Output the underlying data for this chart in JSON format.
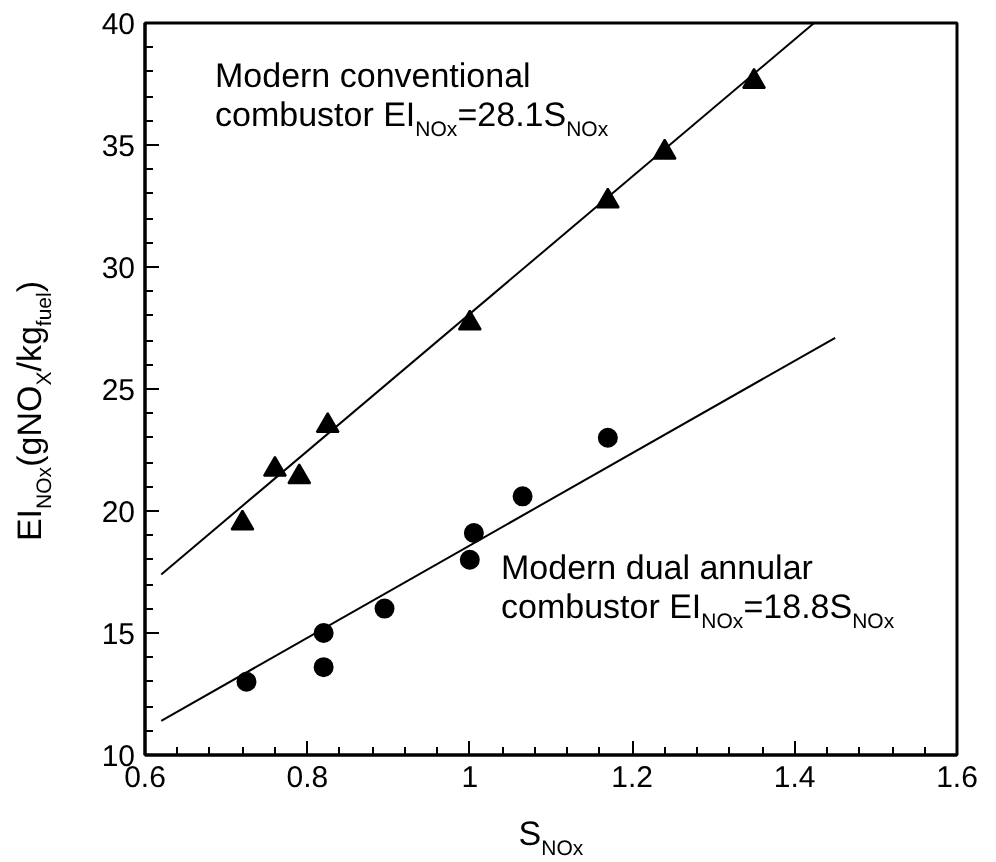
{
  "chart_data": {
    "type": "scatter",
    "xlabel": "S$_{NOx}$",
    "ylabel": "EI$_{NOx}$(gNO$_{X}$/kg$_{fuel}$)",
    "xlim": [
      0.6,
      1.6
    ],
    "ylim": [
      10,
      40
    ],
    "xticks": [
      0.6,
      0.8,
      1,
      1.2,
      1.4,
      1.6
    ],
    "yticks": [
      10,
      15,
      20,
      25,
      30,
      35,
      40
    ],
    "grid": false,
    "series": [
      {
        "marker": "triangle",
        "color": "#000000",
        "x": [
          0.72,
          0.76,
          0.79,
          0.825,
          1.0,
          1.17,
          1.24,
          1.35
        ],
        "values": [
          19.5,
          21.7,
          21.4,
          23.5,
          27.7,
          32.7,
          34.7,
          37.6
        ]
      },
      {
        "marker": "circle",
        "color": "#000000",
        "x": [
          0.725,
          0.82,
          0.82,
          0.895,
          1.0,
          1.005,
          1.065,
          1.17
        ],
        "values": [
          13.0,
          15.0,
          13.6,
          16.0,
          18.0,
          19.1,
          20.6,
          23.0
        ]
      },
      {
        "type": "line",
        "marker": "none",
        "line_style": "solid",
        "color": "#000000",
        "x": [
          0.62,
          1.424
        ],
        "values": [
          17.4,
          40
        ]
      },
      {
        "type": "line",
        "marker": "none",
        "line_style": "solid",
        "color": "#000000",
        "x": [
          0.62,
          1.45
        ],
        "values": [
          11.4,
          27.1
        ]
      }
    ],
    "annotations": [
      "Modern conventional\ncombustor EI$_{NOx}$=28.1S$_{NOx}$",
      "Modern dual annular\ncombustor EI$_{NOx}$=18.8S$_{NOx}$"
    ]
  }
}
